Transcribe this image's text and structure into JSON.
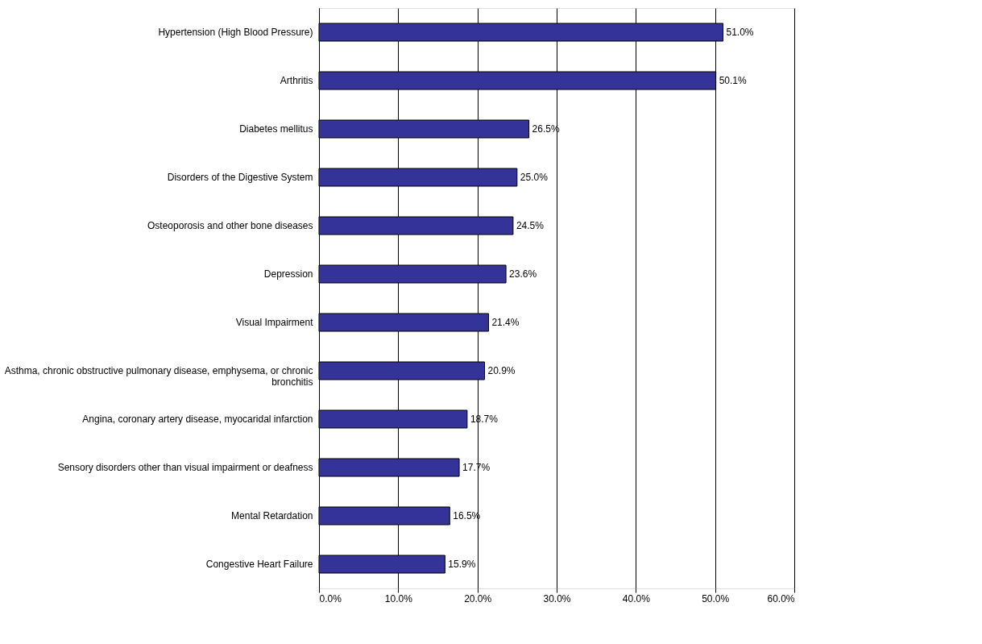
{
  "chart_data": {
    "type": "bar",
    "orientation": "horizontal",
    "categories": [
      "Hypertension (High Blood Pressure)",
      "Arthritis",
      "Diabetes mellitus",
      "Disorders of the Digestive System",
      "Osteoporosis and other bone diseases",
      "Depression",
      "Visual Impairment",
      "Asthma, chronic obstructive pulmonary disease, emphysema, or chronic bronchitis",
      "Angina, coronary artery disease, myocaridal infarction",
      "Sensory disorders other than visual impairment or deafness",
      "Mental Retardation",
      "Congestive Heart Failure"
    ],
    "values": [
      51.0,
      50.1,
      26.5,
      25.0,
      24.5,
      23.6,
      21.4,
      20.9,
      18.7,
      17.7,
      16.5,
      15.9
    ],
    "value_labels": [
      "51.0%",
      "50.1%",
      "26.5%",
      "25.0%",
      "24.5%",
      "23.6%",
      "21.4%",
      "20.9%",
      "18.7%",
      "17.7%",
      "16.5%",
      "15.9%"
    ],
    "color": "#333399",
    "xlim": [
      0,
      60
    ],
    "xticks": [
      {
        "value": 0,
        "label": "0.0%"
      },
      {
        "value": 10,
        "label": "10.0%"
      },
      {
        "value": 20,
        "label": "20.0%"
      },
      {
        "value": 30,
        "label": "30.0%"
      },
      {
        "value": 40,
        "label": "40.0%"
      },
      {
        "value": 50,
        "label": "50.0%"
      },
      {
        "value": 60,
        "label": "60.0%"
      }
    ],
    "grid": "x"
  }
}
